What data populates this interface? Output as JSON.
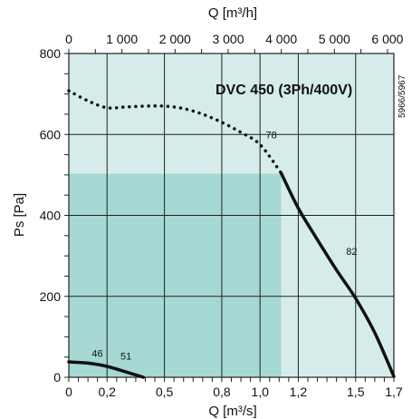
{
  "chart_data": {
    "type": "line",
    "title": "DVC 450 (3Ph/400V)",
    "code": "5966/5967",
    "xlabel": "Q [m³/s]",
    "x2label": "Q [m³/h]",
    "ylabel": "Ps [Pa]",
    "xlim": [
      0,
      1.7
    ],
    "ylim": [
      0,
      800
    ],
    "x2lim": [
      0,
      6120
    ],
    "xticks": [
      0,
      0.2,
      0.5,
      0.8,
      1.0,
      1.2,
      1.5,
      1.7
    ],
    "xtick_labels": [
      "0",
      "0,2",
      "0,5",
      "0,8",
      "1,0",
      "1,2",
      "1,5",
      "1,7"
    ],
    "x2ticks": [
      0,
      1000,
      2000,
      3000,
      4000,
      5000,
      6000
    ],
    "x2tick_labels": [
      "0",
      "1 000",
      "2 000",
      "3 000",
      "4 000",
      "5 000",
      "6 000"
    ],
    "yticks": [
      0,
      200,
      400,
      600,
      800
    ],
    "ytick_labels": [
      "0",
      "200",
      "400",
      "600",
      "800"
    ],
    "grid": true,
    "colors": {
      "background": "#d5ecea",
      "operating_area": "#a6d8d4",
      "curve": "#111111",
      "grid": "#222222"
    },
    "operating_area": {
      "x": [
        0,
        1.11
      ],
      "y": [
        0,
        503
      ]
    },
    "series": [
      {
        "style": "dotted",
        "points": [
          [
            0.0,
            708
          ],
          [
            0.1,
            683
          ],
          [
            0.2,
            666
          ],
          [
            0.3,
            668
          ],
          [
            0.4,
            670
          ],
          [
            0.5,
            670
          ],
          [
            0.6,
            664
          ],
          [
            0.7,
            650
          ],
          [
            0.8,
            630
          ],
          [
            0.9,
            605
          ],
          [
            1.0,
            575
          ],
          [
            1.11,
            505
          ]
        ]
      },
      {
        "style": "solid",
        "points": [
          [
            1.11,
            505
          ],
          [
            1.2,
            418
          ],
          [
            1.3,
            340
          ],
          [
            1.4,
            265
          ],
          [
            1.5,
            195
          ],
          [
            1.6,
            110
          ],
          [
            1.7,
            2
          ]
        ]
      },
      {
        "style": "solid",
        "points": [
          [
            0.0,
            38
          ],
          [
            0.1,
            35
          ],
          [
            0.2,
            27
          ],
          [
            0.3,
            13
          ],
          [
            0.39,
            0
          ]
        ]
      }
    ],
    "annotations": [
      {
        "text": "78",
        "x": 1.03,
        "y": 590
      },
      {
        "text": "82",
        "x": 1.45,
        "y": 303
      },
      {
        "text": "46",
        "x": 0.12,
        "y": 50
      },
      {
        "text": "51",
        "x": 0.27,
        "y": 44
      }
    ]
  }
}
